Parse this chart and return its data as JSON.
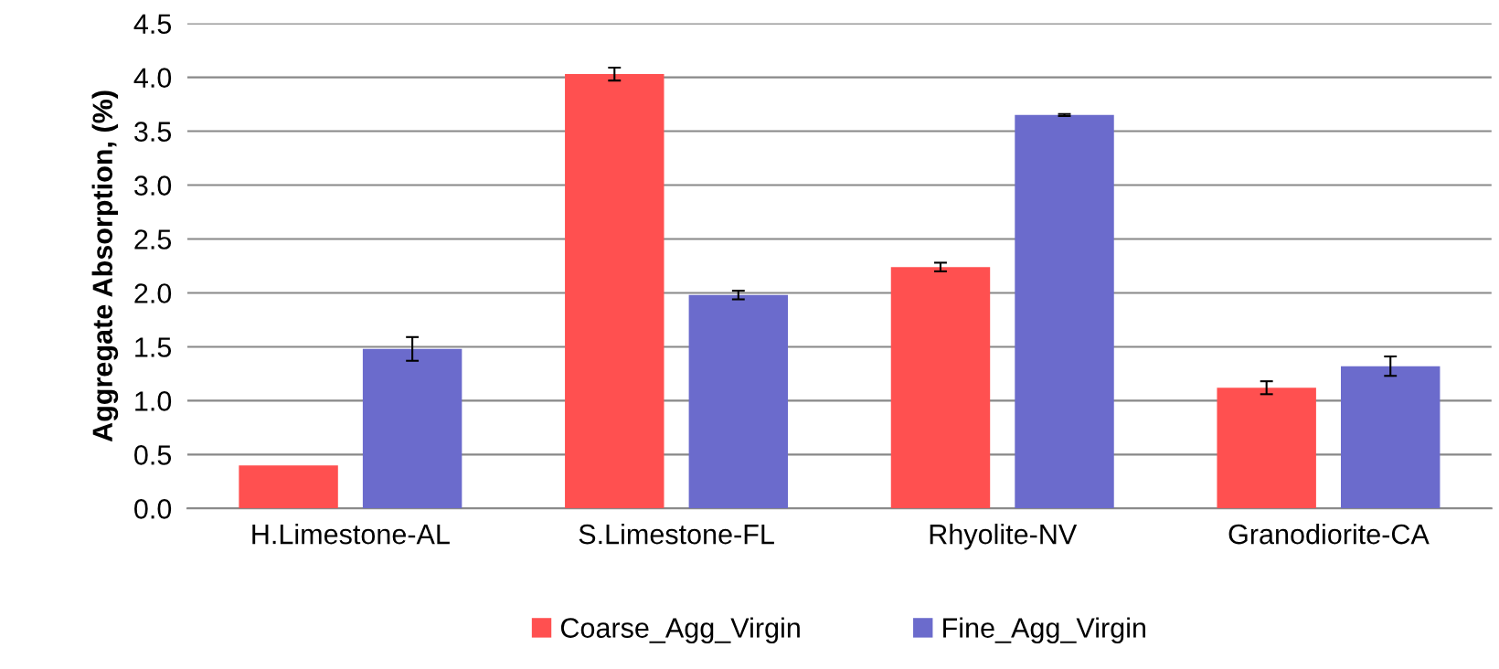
{
  "chart_data": {
    "type": "bar",
    "ylabel": "Aggregate Absorption, (%)",
    "categories": [
      "H.Limestone-AL",
      "S.Limestone-FL",
      "Rhyolite-NV",
      "Granodiorite-CA"
    ],
    "series": [
      {
        "name": "Coarse_Agg_Virgin",
        "color": "#ff5050",
        "values": [
          0.4,
          4.03,
          2.24,
          1.12
        ],
        "errors": [
          null,
          0.06,
          0.04,
          0.06
        ]
      },
      {
        "name": "Fine_Agg_Virgin",
        "color": "#6b6bcc",
        "values": [
          1.48,
          1.98,
          3.65,
          1.32
        ],
        "errors": [
          0.11,
          0.04,
          0.01,
          0.09
        ]
      }
    ],
    "ylim": [
      0,
      4.5
    ],
    "yticks": [
      {
        "value": 0,
        "label": "0.0"
      },
      {
        "value": 0.5,
        "label": "0.5"
      },
      {
        "value": 1,
        "label": "1.0"
      },
      {
        "value": 1.5,
        "label": "1.5"
      },
      {
        "value": 2,
        "label": "2.0"
      },
      {
        "value": 2.5,
        "label": "2.5"
      },
      {
        "value": 3,
        "label": "3.0"
      },
      {
        "value": 3.5,
        "label": "3.5"
      },
      {
        "value": 4,
        "label": "4.0"
      },
      {
        "value": 4.5,
        "label": "4.5"
      }
    ],
    "grid": "y",
    "legend": "bottom"
  }
}
